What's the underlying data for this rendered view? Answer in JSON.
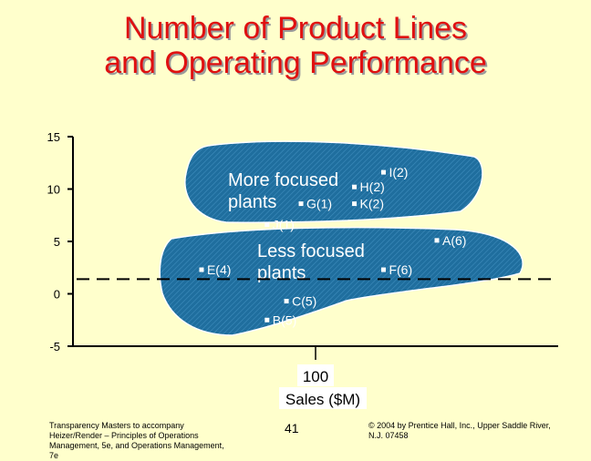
{
  "title_lines": [
    "Number of Product Lines",
    "and Operating Performance"
  ],
  "chart_data": {
    "type": "scatter",
    "title": "Number of Product Lines and Operating Performance",
    "ylim": [
      -5,
      15
    ],
    "yticks": [
      "15",
      "10",
      "5",
      "0",
      "-5"
    ],
    "xlabel_lines": [
      "100",
      "Sales ($M)"
    ],
    "grid": false,
    "points": [
      {
        "label": "I(2)",
        "x": 128,
        "y": 11.6
      },
      {
        "label": "H(2)",
        "x": 116,
        "y": 10.2
      },
      {
        "label": "G(1)",
        "x": 94,
        "y": 8.6
      },
      {
        "label": "K(2)",
        "x": 116,
        "y": 8.6
      },
      {
        "label": "J(1)",
        "x": 80,
        "y": 6.6
      },
      {
        "label": "A(6)",
        "x": 150,
        "y": 5.1
      },
      {
        "label": "E(4)",
        "x": 53,
        "y": 2.3
      },
      {
        "label": "F(6)",
        "x": 128,
        "y": 2.3
      },
      {
        "label": "C(5)",
        "x": 88,
        "y": -0.7
      },
      {
        "label": "B(5)",
        "x": 80,
        "y": -2.5
      }
    ],
    "regions": [
      {
        "name_lines": [
          "More focused",
          "plants"
        ],
        "color": "#1f6e9e"
      },
      {
        "name_lines": [
          "Less focused",
          "plants"
        ],
        "color": "#1f6e9e"
      }
    ],
    "reference_line_y": 1.4
  },
  "footer": {
    "left_lines": [
      "Transparency Masters to accompany",
      "Heizer/Render – Principles of Operations",
      "Management, 5e, and Operations Management,",
      "7e"
    ],
    "page_number": "41",
    "right_lines": [
      "© 2004 by Prentice Hall, Inc., Upper Saddle River,",
      "N.J. 07458"
    ]
  },
  "colors": {
    "background": "#ffffcc",
    "title": "#e01010",
    "region": "#1f6e9e"
  }
}
